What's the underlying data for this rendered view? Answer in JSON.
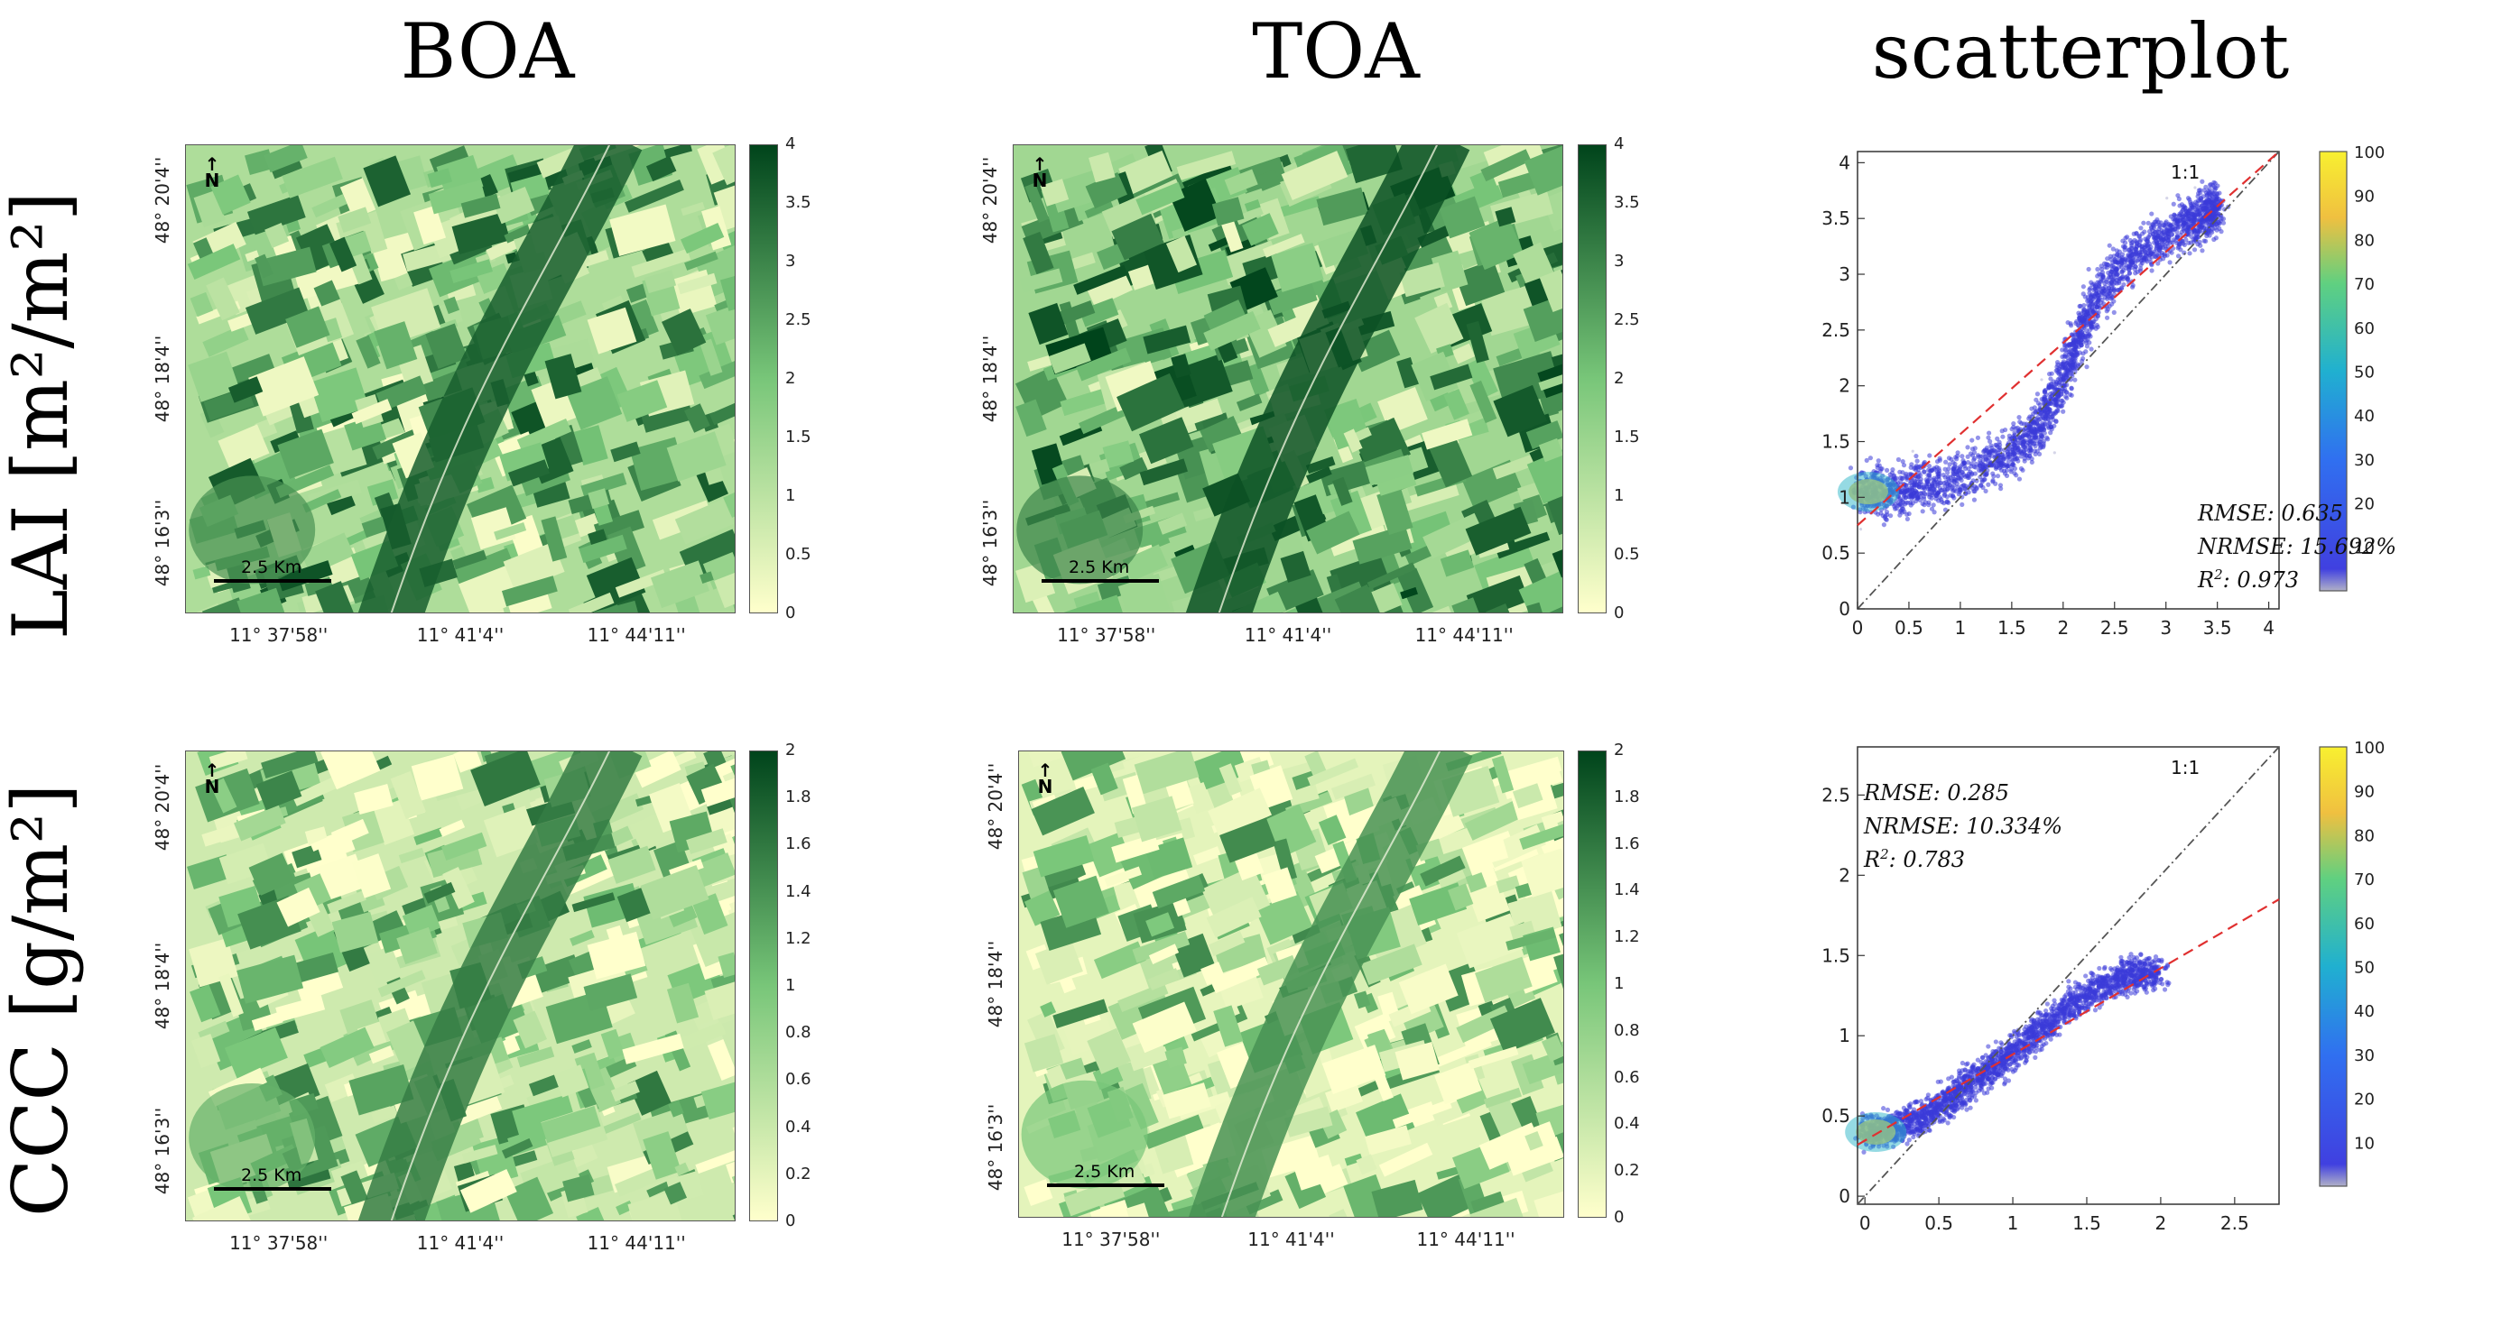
{
  "column_titles": {
    "boa": "BOA",
    "toa": "TOA",
    "scatter": "scatterplot"
  },
  "row_titles": {
    "lai": "LAI [m²/m²]",
    "ccc": "CCC [g/m²]"
  },
  "map_axes": {
    "lon_labels": [
      "11° 37'58''",
      "11° 41'4''",
      "11° 44'11''"
    ],
    "lat_labels": [
      "48° 20'4''",
      "48° 18'4''",
      "48° 16'3''"
    ],
    "north": "N",
    "scale": "2.5 Km"
  },
  "colors": {
    "map_low": "#ffffcc",
    "map_mid": "#78c679",
    "map_high": "#00441b",
    "scatter_density": "#3b3bd8",
    "fit_line": "#e03030",
    "one_to_one": "#555555"
  },
  "lai_colorbar_ticks": [
    "4",
    "3.5",
    "3",
    "2.5",
    "2",
    "1.5",
    "1",
    "0.5",
    "0"
  ],
  "ccc_colorbar_ticks": [
    "2",
    "1.8",
    "1.6",
    "1.4",
    "1.2",
    "1",
    "0.8",
    "0.6",
    "0.4",
    "0.2",
    "0"
  ],
  "density_colorbar_ticks": [
    "100",
    "90",
    "80",
    "70",
    "60",
    "50",
    "40",
    "30",
    "20",
    "10"
  ],
  "chart_data": [
    {
      "type": "scatter",
      "title": "scatterplot",
      "row": "LAI [m²/m²]",
      "xlabel": "",
      "ylabel": "",
      "xlim": [
        0,
        4.1
      ],
      "ylim": [
        0,
        4.1
      ],
      "xticks": [
        0,
        0.5,
        1,
        1.5,
        2,
        2.5,
        3,
        3.5,
        4
      ],
      "yticks": [
        0,
        0.5,
        1,
        1.5,
        2,
        2.5,
        3,
        3.5,
        4
      ],
      "one_to_one_label": "1:1",
      "fit_line": {
        "x": [
          0,
          4.1
        ],
        "y": [
          0.75,
          4.2
        ]
      },
      "density_colorbar": {
        "min": 0,
        "max": 100
      },
      "density_cloud": {
        "x": [
          0.0,
          0.3,
          0.6,
          1.0,
          1.4,
          1.7,
          1.9,
          2.1,
          2.3,
          2.6,
          2.9,
          3.2,
          3.4,
          3.5
        ],
        "y_center": [
          1.05,
          1.05,
          1.1,
          1.2,
          1.35,
          1.55,
          1.85,
          2.3,
          2.75,
          3.1,
          3.3,
          3.45,
          3.55,
          3.6
        ]
      },
      "stats": {
        "rmse": "RMSE: 0.635",
        "nrmse": "NRMSE: 15.692%",
        "r2_prefix": "R",
        "r2_value": ": 0.973"
      }
    },
    {
      "type": "scatter",
      "title": "scatterplot",
      "row": "CCC [g/m²]",
      "xlabel": "",
      "ylabel": "",
      "xlim": [
        -0.05,
        2.8
      ],
      "ylim": [
        -0.05,
        2.8
      ],
      "xticks": [
        0,
        0.5,
        1,
        1.5,
        2,
        2.5
      ],
      "yticks": [
        0,
        0.5,
        1,
        1.5,
        2,
        2.5
      ],
      "one_to_one_label": "1:1",
      "fit_line": {
        "x": [
          -0.05,
          2.8
        ],
        "y": [
          0.32,
          1.85
        ]
      },
      "density_colorbar": {
        "min": 0,
        "max": 100
      },
      "density_cloud": {
        "x": [
          0.0,
          0.2,
          0.4,
          0.6,
          0.8,
          1.0,
          1.2,
          1.4,
          1.6,
          1.8,
          2.0
        ],
        "y_center": [
          0.4,
          0.42,
          0.5,
          0.62,
          0.75,
          0.9,
          1.05,
          1.2,
          1.32,
          1.38,
          1.4
        ]
      },
      "stats": {
        "rmse": "RMSE: 0.285",
        "nrmse": "NRMSE: 10.334%",
        "r2_prefix": "R",
        "r2_value": ": 0.783"
      }
    }
  ]
}
